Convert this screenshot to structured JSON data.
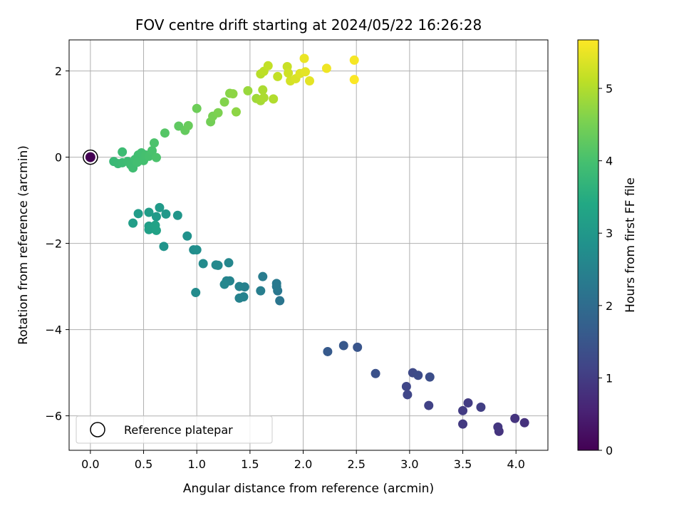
{
  "chart_data": {
    "type": "scatter",
    "title": "FOV centre drift starting at 2024/05/22 16:26:28",
    "xlabel": "Angular distance from reference (arcmin)",
    "ylabel": "Rotation from reference (arcmin)",
    "xlim": [
      -0.2,
      4.3
    ],
    "ylim": [
      -6.8,
      2.72
    ],
    "xticks": [
      0.0,
      0.5,
      1.0,
      1.5,
      2.0,
      2.5,
      3.0,
      3.5,
      4.0
    ],
    "xtick_labels": [
      "0.0",
      "0.5",
      "1.0",
      "1.5",
      "2.0",
      "2.5",
      "3.0",
      "3.5",
      "4.0"
    ],
    "yticks": [
      -6,
      -4,
      -2,
      0,
      2
    ],
    "ytick_labels": [
      "−6",
      "−4",
      "−2",
      "0",
      "2"
    ],
    "grid": true,
    "colormap": "viridis",
    "colorbar": {
      "label": "Hours from first FF file",
      "range": [
        0,
        5.67
      ],
      "ticks": [
        0,
        1,
        2,
        3,
        4,
        5
      ],
      "tick_labels": [
        "0",
        "1",
        "2",
        "3",
        "4",
        "5"
      ]
    },
    "legend": {
      "entries": [
        "Reference platepar"
      ],
      "placement": "lower-left"
    },
    "reference_point": {
      "x": 0.0,
      "y": 0.0,
      "hours": 0.0
    },
    "points": [
      {
        "x": 4.08,
        "y": -6.16,
        "h": 0.8
      },
      {
        "x": 3.99,
        "y": -6.06,
        "h": 0.85
      },
      {
        "x": 3.84,
        "y": -6.36,
        "h": 0.85
      },
      {
        "x": 3.83,
        "y": -6.26,
        "h": 0.9
      },
      {
        "x": 3.5,
        "y": -6.19,
        "h": 0.95
      },
      {
        "x": 3.5,
        "y": -5.88,
        "h": 1.0
      },
      {
        "x": 3.55,
        "y": -5.7,
        "h": 1.0
      },
      {
        "x": 3.67,
        "y": -5.8,
        "h": 1.05
      },
      {
        "x": 3.18,
        "y": -5.76,
        "h": 1.1
      },
      {
        "x": 2.97,
        "y": -5.32,
        "h": 1.2
      },
      {
        "x": 2.98,
        "y": -5.51,
        "h": 1.2
      },
      {
        "x": 3.03,
        "y": -5.0,
        "h": 1.25
      },
      {
        "x": 3.08,
        "y": -5.06,
        "h": 1.3
      },
      {
        "x": 3.19,
        "y": -5.1,
        "h": 1.35
      },
      {
        "x": 2.68,
        "y": -5.02,
        "h": 1.4
      },
      {
        "x": 2.51,
        "y": -4.41,
        "h": 1.5
      },
      {
        "x": 2.38,
        "y": -4.37,
        "h": 1.55
      },
      {
        "x": 2.23,
        "y": -4.51,
        "h": 1.6
      },
      {
        "x": 1.78,
        "y": -3.33,
        "h": 2.2
      },
      {
        "x": 1.76,
        "y": -3.1,
        "h": 2.25
      },
      {
        "x": 1.75,
        "y": -2.93,
        "h": 2.3
      },
      {
        "x": 1.75,
        "y": -3.0,
        "h": 2.3
      },
      {
        "x": 1.62,
        "y": -2.77,
        "h": 2.35
      },
      {
        "x": 1.6,
        "y": -3.1,
        "h": 2.4
      },
      {
        "x": 1.45,
        "y": -3.01,
        "h": 2.45
      },
      {
        "x": 1.44,
        "y": -3.24,
        "h": 2.5
      },
      {
        "x": 1.4,
        "y": -3.27,
        "h": 2.5
      },
      {
        "x": 1.4,
        "y": -3.0,
        "h": 2.5
      },
      {
        "x": 1.31,
        "y": -2.87,
        "h": 2.55
      },
      {
        "x": 1.28,
        "y": -2.87,
        "h": 2.55
      },
      {
        "x": 1.26,
        "y": -2.95,
        "h": 2.6
      },
      {
        "x": 1.3,
        "y": -2.45,
        "h": 2.6
      },
      {
        "x": 1.18,
        "y": -2.5,
        "h": 2.65
      },
      {
        "x": 1.2,
        "y": -2.51,
        "h": 2.65
      },
      {
        "x": 1.06,
        "y": -2.47,
        "h": 2.7
      },
      {
        "x": 0.99,
        "y": -3.14,
        "h": 2.7
      },
      {
        "x": 0.97,
        "y": -2.15,
        "h": 2.75
      },
      {
        "x": 1.0,
        "y": -2.15,
        "h": 2.8
      },
      {
        "x": 0.91,
        "y": -1.83,
        "h": 2.85
      },
      {
        "x": 0.69,
        "y": -2.07,
        "h": 2.9
      },
      {
        "x": 0.82,
        "y": -1.35,
        "h": 2.95
      },
      {
        "x": 0.71,
        "y": -1.32,
        "h": 3.0
      },
      {
        "x": 0.65,
        "y": -1.17,
        "h": 3.05
      },
      {
        "x": 0.62,
        "y": -1.38,
        "h": 3.05
      },
      {
        "x": 0.55,
        "y": -1.28,
        "h": 3.1
      },
      {
        "x": 0.45,
        "y": -1.31,
        "h": 3.1
      },
      {
        "x": 0.4,
        "y": -1.53,
        "h": 3.15
      },
      {
        "x": 0.55,
        "y": -1.6,
        "h": 3.15
      },
      {
        "x": 0.55,
        "y": -1.68,
        "h": 3.2
      },
      {
        "x": 0.58,
        "y": -1.65,
        "h": 3.2
      },
      {
        "x": 0.61,
        "y": -1.58,
        "h": 3.25
      },
      {
        "x": 0.62,
        "y": -1.7,
        "h": 3.25
      },
      {
        "x": 0.22,
        "y": -0.1,
        "h": 3.8
      },
      {
        "x": 0.26,
        "y": -0.15,
        "h": 3.82
      },
      {
        "x": 0.3,
        "y": -0.13,
        "h": 3.85
      },
      {
        "x": 0.3,
        "y": 0.12,
        "h": 3.87
      },
      {
        "x": 0.35,
        "y": -0.1,
        "h": 3.88
      },
      {
        "x": 0.38,
        "y": -0.18,
        "h": 3.9
      },
      {
        "x": 0.4,
        "y": -0.25,
        "h": 3.9
      },
      {
        "x": 0.42,
        "y": -0.05,
        "h": 3.92
      },
      {
        "x": 0.45,
        "y": 0.05,
        "h": 3.93
      },
      {
        "x": 0.44,
        "y": -0.12,
        "h": 3.95
      },
      {
        "x": 0.48,
        "y": 0.1,
        "h": 3.95
      },
      {
        "x": 0.5,
        "y": -0.08,
        "h": 3.97
      },
      {
        "x": 0.52,
        "y": 0.05,
        "h": 3.98
      },
      {
        "x": 0.55,
        "y": 0.02,
        "h": 4.0
      },
      {
        "x": 0.58,
        "y": 0.15,
        "h": 4.02
      },
      {
        "x": 0.6,
        "y": 0.33,
        "h": 4.05
      },
      {
        "x": 0.62,
        "y": -0.01,
        "h": 4.05
      },
      {
        "x": 0.7,
        "y": 0.56,
        "h": 4.15
      },
      {
        "x": 0.83,
        "y": 0.72,
        "h": 4.25
      },
      {
        "x": 0.89,
        "y": 0.62,
        "h": 4.3
      },
      {
        "x": 0.92,
        "y": 0.73,
        "h": 4.35
      },
      {
        "x": 1.0,
        "y": 1.13,
        "h": 4.4
      },
      {
        "x": 1.13,
        "y": 0.82,
        "h": 4.45
      },
      {
        "x": 1.15,
        "y": 0.95,
        "h": 4.5
      },
      {
        "x": 1.2,
        "y": 1.03,
        "h": 4.55
      },
      {
        "x": 1.26,
        "y": 1.28,
        "h": 4.6
      },
      {
        "x": 1.31,
        "y": 1.48,
        "h": 4.65
      },
      {
        "x": 1.34,
        "y": 1.47,
        "h": 4.7
      },
      {
        "x": 1.37,
        "y": 1.05,
        "h": 4.7
      },
      {
        "x": 1.48,
        "y": 1.54,
        "h": 4.8
      },
      {
        "x": 1.56,
        "y": 1.36,
        "h": 4.85
      },
      {
        "x": 1.6,
        "y": 1.31,
        "h": 4.9
      },
      {
        "x": 1.63,
        "y": 1.38,
        "h": 4.95
      },
      {
        "x": 1.62,
        "y": 1.56,
        "h": 4.95
      },
      {
        "x": 1.72,
        "y": 1.35,
        "h": 5.0
      },
      {
        "x": 1.6,
        "y": 1.93,
        "h": 5.05
      },
      {
        "x": 1.63,
        "y": 1.99,
        "h": 5.1
      },
      {
        "x": 1.67,
        "y": 2.12,
        "h": 5.15
      },
      {
        "x": 1.76,
        "y": 1.87,
        "h": 5.15
      },
      {
        "x": 1.85,
        "y": 2.1,
        "h": 5.2
      },
      {
        "x": 1.86,
        "y": 1.95,
        "h": 5.25
      },
      {
        "x": 1.88,
        "y": 1.77,
        "h": 5.3
      },
      {
        "x": 1.93,
        "y": 1.82,
        "h": 5.35
      },
      {
        "x": 1.97,
        "y": 1.94,
        "h": 5.4
      },
      {
        "x": 2.02,
        "y": 1.98,
        "h": 5.45
      },
      {
        "x": 2.06,
        "y": 1.77,
        "h": 5.45
      },
      {
        "x": 2.01,
        "y": 2.29,
        "h": 5.5
      },
      {
        "x": 2.22,
        "y": 2.06,
        "h": 5.55
      },
      {
        "x": 2.48,
        "y": 2.25,
        "h": 5.6
      },
      {
        "x": 2.48,
        "y": 1.8,
        "h": 5.65
      }
    ]
  }
}
